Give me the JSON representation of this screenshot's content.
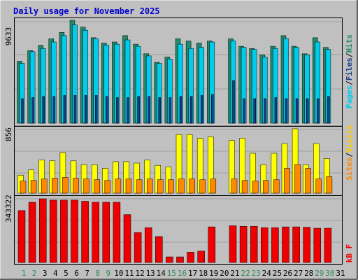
{
  "chart_data": {
    "type": "bar",
    "title": "Daily usage for November 2025",
    "x": [
      "1",
      "2",
      "3",
      "4",
      "5",
      "6",
      "7",
      "8",
      "9",
      "10",
      "11",
      "12",
      "13",
      "14",
      "15",
      "16",
      "17",
      "18",
      "19",
      "20",
      "21",
      "22",
      "23",
      "24",
      "25",
      "26",
      "27",
      "28",
      "29",
      "30",
      "31"
    ],
    "weekend_days": [
      "1",
      "2",
      "8",
      "9",
      "15",
      "16",
      "22",
      "23",
      "29",
      "30"
    ],
    "panels": {
      "hits_files_pages": {
        "max_label": "9633",
        "ylim": [
          0,
          9633
        ],
        "series": [
          {
            "name": "Hits",
            "values": [
              5800,
              6800,
              7300,
              7900,
              8500,
              9633,
              9000,
              8000,
              7500,
              7600,
              8200,
              7400,
              6500,
              5700,
              6200,
              7900,
              7700,
              7500,
              7700,
              null,
              7900,
              7200,
              7000,
              6400,
              7200,
              8200,
              7200,
              6500,
              8000,
              7100,
              null
            ]
          },
          {
            "name": "Files",
            "values": [
              5600,
              6700,
              7000,
              7600,
              8200,
              9200,
              8700,
              7900,
              7300,
              7400,
              7800,
              7200,
              6300,
              5600,
              6000,
              7400,
              7000,
              7100,
              7600,
              null,
              7700,
              7100,
              6900,
              6200,
              7000,
              7900,
              7100,
              6400,
              7600,
              6900,
              null
            ]
          },
          {
            "name": "Pages",
            "values": [
              2300,
              2400,
              2500,
              2500,
              2600,
              2600,
              2600,
              2600,
              2500,
              2400,
              2400,
              2500,
              2500,
              2400,
              2400,
              2500,
              2500,
              2600,
              2700,
              null,
              4000,
              2300,
              2300,
              2300,
              2400,
              2300,
              2300,
              2300,
              2300,
              2500,
              null
            ]
          }
        ],
        "colors": {
          "Hits": "#1f8a6e",
          "Files": "#00ccee",
          "Pages": "#1a3a8a"
        }
      },
      "sites_visits": {
        "max_label": "856",
        "ylim": [
          0,
          856
        ],
        "series": [
          {
            "name": "Visits",
            "values": [
              240,
              310,
              440,
              430,
              540,
              430,
              380,
              380,
              330,
              420,
              420,
              400,
              440,
              370,
              350,
              780,
              780,
              730,
              750,
              null,
              700,
              730,
              530,
              380,
              530,
              660,
              856,
              380,
              660,
              460,
              null
            ]
          },
          {
            "name": "Sites",
            "values": [
              160,
              170,
              190,
              200,
              210,
              200,
              190,
              180,
              170,
              190,
              190,
              180,
              190,
              180,
              180,
              190,
              190,
              180,
              190,
              null,
              190,
              170,
              160,
              170,
              180,
              330,
              380,
              330,
              190,
              220,
              null
            ]
          }
        ],
        "colors": {
          "Visits": "#ffff00",
          "Sites": "#ff8800"
        }
      },
      "kbytes": {
        "max_label": "343322",
        "ylim": [
          0,
          343322
        ],
        "series": [
          {
            "name": "kB F",
            "values": [
              280000,
              325000,
              343322,
              336000,
              336000,
              336000,
              330000,
              325000,
              325000,
              325000,
              258000,
              162000,
              188000,
              140000,
              30000,
              30000,
              55000,
              62000,
              192000,
              null,
              198000,
              195000,
              195000,
              188000,
              188000,
              192000,
              192000,
              190000,
              185000,
              185000,
              null
            ]
          }
        ],
        "colors": {
          "kB F": "#ee0000"
        }
      }
    },
    "right_labels": {
      "top": [
        "Pages",
        "Files",
        "Hits"
      ],
      "middle": [
        "Sites",
        "Visits"
      ],
      "bottom": [
        "kB F"
      ]
    },
    "separator": "/",
    "colors": {
      "background": "#c0c0c0",
      "weekday_label": "#000000",
      "weekend_label": "#2e8b57",
      "title": "#0000cc"
    }
  }
}
